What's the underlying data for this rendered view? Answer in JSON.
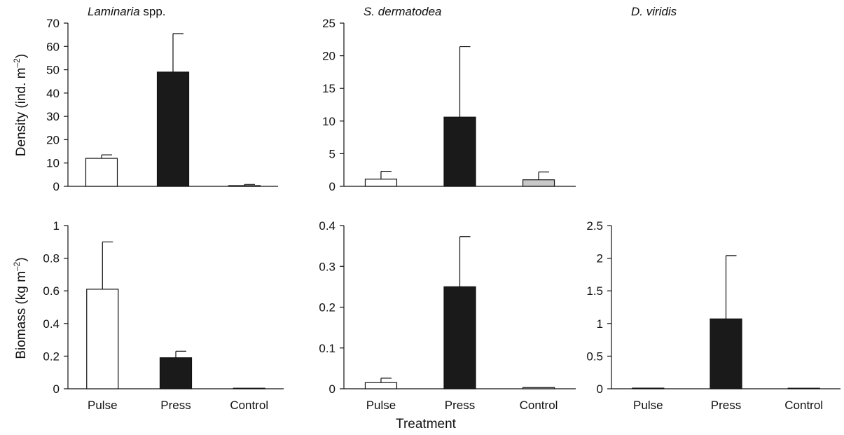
{
  "figure": {
    "row_labels": [
      "Density (ind. m–2)",
      "Biomass (kg m–2)"
    ],
    "x_title": "Treatment"
  },
  "chart_data": [
    {
      "type": "bar",
      "title": "Laminaria spp.",
      "title_suffix": " spp.",
      "ylabel": "Density (ind. m–2)",
      "categories": [
        "Pulse",
        "Press",
        "Control"
      ],
      "show_category_labels": false,
      "values": [
        12,
        49,
        0.3
      ],
      "errors": [
        1.5,
        16.5,
        0.5
      ],
      "bar_colors": [
        "#ffffff",
        "#1a1a1a",
        "#c8c8c8"
      ],
      "ylim": [
        0,
        70
      ],
      "yticks": [
        0,
        10,
        20,
        30,
        40,
        50,
        60,
        70
      ],
      "ytick_labels": [
        "0",
        "10",
        "20",
        "30",
        "40",
        "50",
        "60",
        "70"
      ]
    },
    {
      "type": "bar",
      "title": "S. dermatodea",
      "ylabel": "",
      "categories": [
        "Pulse",
        "Press",
        "Control"
      ],
      "show_category_labels": false,
      "values": [
        1.1,
        10.6,
        1.0
      ],
      "errors": [
        1.2,
        10.8,
        1.2
      ],
      "bar_colors": [
        "#ffffff",
        "#1a1a1a",
        "#c8c8c8"
      ],
      "ylim": [
        0,
        25
      ],
      "yticks": [
        0,
        5,
        10,
        15,
        20,
        25
      ],
      "ytick_labels": [
        "0",
        "5",
        "10",
        "15",
        "20",
        "25"
      ]
    },
    {
      "type": "bar",
      "title": "",
      "ylabel": "Biomass (kg m–2)",
      "categories": [
        "Pulse",
        "Press",
        "Control"
      ],
      "show_category_labels": true,
      "values": [
        0.61,
        0.19,
        0.002
      ],
      "errors": [
        0.29,
        0.04,
        0.0
      ],
      "bar_colors": [
        "#ffffff",
        "#1a1a1a",
        "#c8c8c8"
      ],
      "ylim": [
        0,
        1
      ],
      "yticks": [
        0,
        0.2,
        0.4,
        0.6,
        0.8,
        1
      ],
      "ytick_labels": [
        "0",
        "0.2",
        "0.4",
        "0.6",
        "0.8",
        "1"
      ]
    },
    {
      "type": "bar",
      "title": "",
      "ylabel": "",
      "categories": [
        "Pulse",
        "Press",
        "Control"
      ],
      "show_category_labels": true,
      "values": [
        0.015,
        0.25,
        0.003
      ],
      "errors": [
        0.011,
        0.123,
        0.0
      ],
      "bar_colors": [
        "#ffffff",
        "#1a1a1a",
        "#c8c8c8"
      ],
      "ylim": [
        0,
        0.4
      ],
      "yticks": [
        0,
        0.1,
        0.2,
        0.3,
        0.4
      ],
      "ytick_labels": [
        "0",
        "0.1",
        "0.2",
        "0.3",
        "0.4"
      ]
    },
    {
      "type": "bar",
      "title": "D. viridis",
      "ylabel": "",
      "categories": [
        "Pulse",
        "Press",
        "Control"
      ],
      "show_category_labels": true,
      "values": [
        0.01,
        1.07,
        0.005
      ],
      "errors": [
        0.0,
        0.97,
        0.0
      ],
      "bar_colors": [
        "#ffffff",
        "#1a1a1a",
        "#c8c8c8"
      ],
      "ylim": [
        0,
        2.5
      ],
      "yticks": [
        0,
        0.5,
        1,
        1.5,
        2,
        2.5
      ],
      "ytick_labels": [
        "0",
        "0.5",
        "1",
        "1.5",
        "2",
        "2.5"
      ]
    }
  ]
}
